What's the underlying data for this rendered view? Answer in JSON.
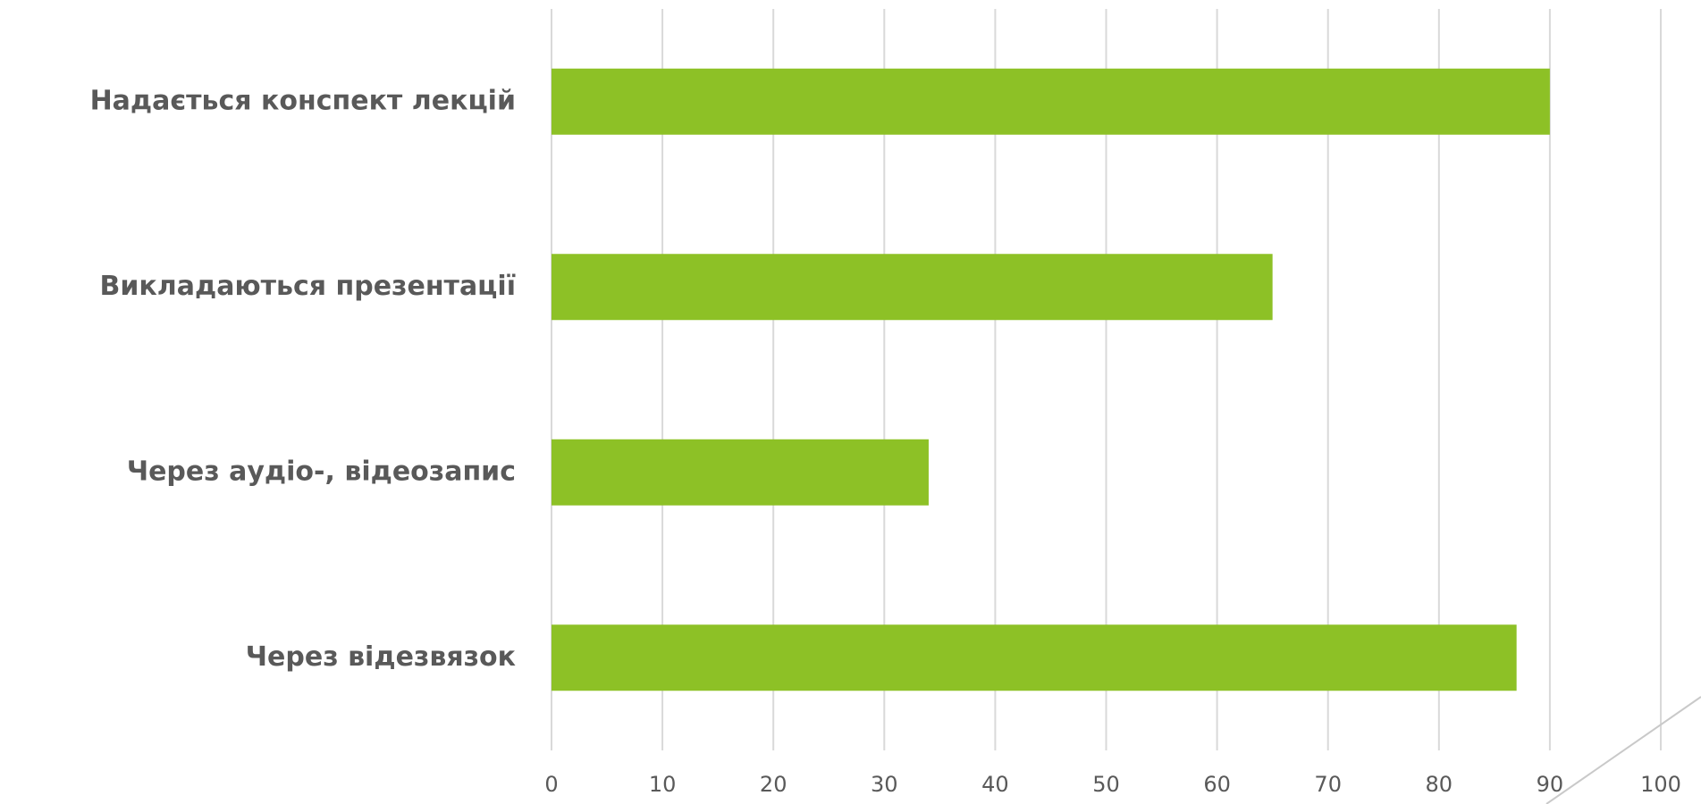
{
  "chart_data": {
    "type": "bar",
    "orientation": "horizontal",
    "categories": [
      "Надається конспект лекцій",
      "Викладаються презентації",
      "Через аудіо-, відеозапис",
      "Через відезвязок"
    ],
    "values": [
      90,
      65,
      34,
      87
    ],
    "xlim": [
      0,
      100
    ],
    "x_ticks": [
      0,
      10,
      20,
      30,
      40,
      50,
      60,
      70,
      80,
      90,
      100
    ],
    "tick_labels": [
      "0",
      "10",
      "20",
      "30",
      "40",
      "50",
      "60",
      "70",
      "80",
      "90",
      "100"
    ],
    "grid": true,
    "legend": "none",
    "bar_color": "#8dc126"
  }
}
